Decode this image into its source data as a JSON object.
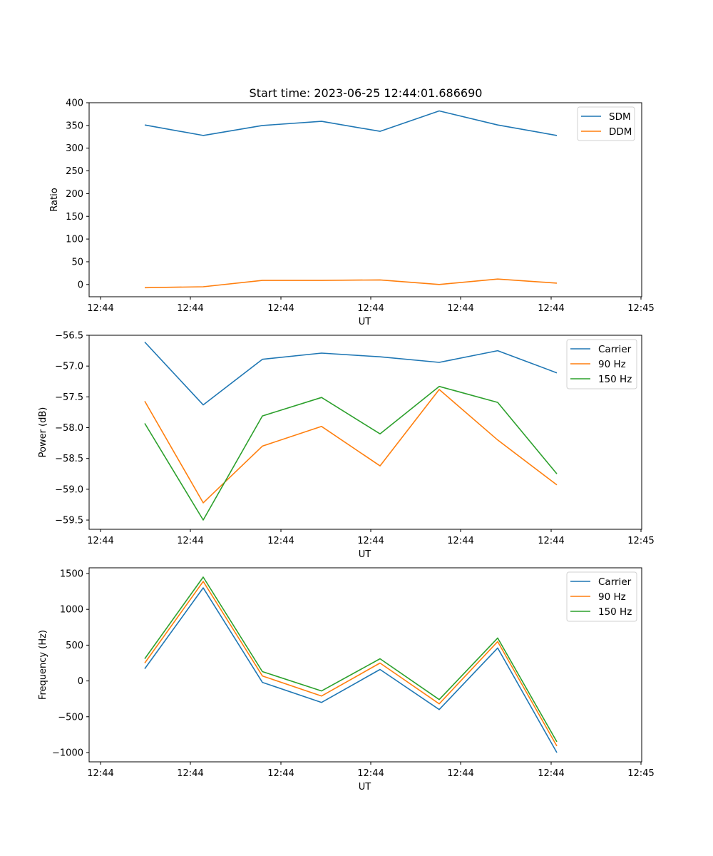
{
  "figure": {
    "title": "Start time: 2023-06-25 12:44:01.686690"
  },
  "chart_data": [
    {
      "type": "line",
      "xlabel": "UT",
      "ylabel": "Ratio",
      "x_tick_labels": [
        "12:44",
        "12:44",
        "12:44",
        "12:44",
        "12:44",
        "12:44",
        "12:45"
      ],
      "y_ticks": [
        0,
        50,
        100,
        150,
        200,
        250,
        300,
        350,
        400
      ],
      "ylim": [
        -27,
        400
      ],
      "legend_position": "top-right",
      "grid": false,
      "series": [
        {
          "name": "SDM",
          "color": "#1f77b4",
          "values": [
            351,
            328,
            350,
            359,
            337,
            382,
            351,
            328
          ]
        },
        {
          "name": "DDM",
          "color": "#ff7f0e",
          "values": [
            -7,
            -5,
            9,
            9,
            10,
            0,
            12,
            3
          ]
        }
      ]
    },
    {
      "type": "line",
      "xlabel": "UT",
      "ylabel": "Power (dB)",
      "x_tick_labels": [
        "12:44",
        "12:44",
        "12:44",
        "12:44",
        "12:44",
        "12:44",
        "12:45"
      ],
      "y_ticks": [
        -59.5,
        -59.0,
        -58.5,
        -58.0,
        -57.5,
        -57.0,
        -56.5
      ],
      "y_tick_labels": [
        "−59.5",
        "−59.0",
        "−58.5",
        "−58.0",
        "−57.5",
        "−57.0",
        "−56.5"
      ],
      "ylim": [
        -59.65,
        -56.5
      ],
      "legend_position": "top-right",
      "grid": false,
      "series": [
        {
          "name": "Carrier",
          "color": "#1f77b4",
          "values": [
            -56.61,
            -57.63,
            -56.89,
            -56.79,
            -56.85,
            -56.94,
            -56.75,
            -57.11
          ]
        },
        {
          "name": "90 Hz",
          "color": "#ff7f0e",
          "values": [
            -57.57,
            -59.22,
            -58.3,
            -57.98,
            -58.62,
            -57.38,
            -58.2,
            -58.93
          ]
        },
        {
          "name": "150 Hz",
          "color": "#2ca02c",
          "values": [
            -57.93,
            -59.5,
            -57.81,
            -57.51,
            -58.1,
            -57.33,
            -57.59,
            -58.75
          ]
        }
      ]
    },
    {
      "type": "line",
      "xlabel": "UT",
      "ylabel": "Frequency (Hz)",
      "x_tick_labels": [
        "12:44",
        "12:44",
        "12:44",
        "12:44",
        "12:44",
        "12:44",
        "12:45"
      ],
      "y_ticks": [
        -1000,
        -500,
        0,
        500,
        1000,
        1500
      ],
      "y_tick_labels": [
        "−1000",
        "−500",
        "0",
        "500",
        "1000",
        "1500"
      ],
      "ylim": [
        -1130,
        1580
      ],
      "legend_position": "top-right",
      "grid": false,
      "series": [
        {
          "name": "Carrier",
          "color": "#1f77b4",
          "values": [
            170,
            1300,
            -20,
            -300,
            160,
            -400,
            460,
            -1000
          ]
        },
        {
          "name": "90 Hz",
          "color": "#ff7f0e",
          "values": [
            250,
            1390,
            70,
            -210,
            250,
            -320,
            550,
            -910
          ]
        },
        {
          "name": "150 Hz",
          "color": "#2ca02c",
          "values": [
            310,
            1450,
            130,
            -140,
            310,
            -260,
            600,
            -850
          ]
        }
      ]
    }
  ]
}
